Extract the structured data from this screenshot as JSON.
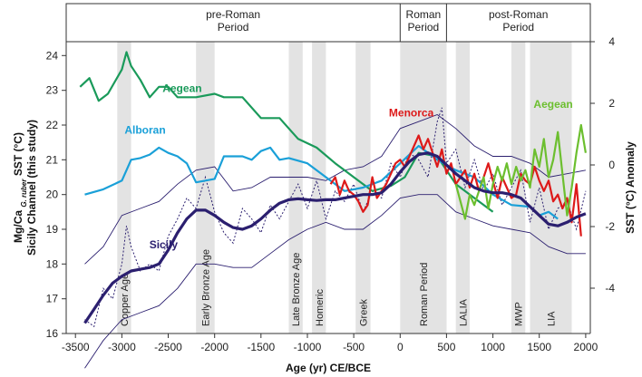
{
  "chart_data": {
    "type": "line",
    "xlabel": "Age (yr) CE/BCE",
    "ylabel_left": [
      "Mg/Ca G. ruber SST (°C)",
      "Sicily Channel (this study)"
    ],
    "ylabel_left_line1_pre": "Mg/Ca",
    "ylabel_left_line1_sub": "G. ruber",
    "ylabel_left_line1_post": "SST (°C)",
    "ylabel_left_line2": "Sicily Channel (this study)",
    "ylabel_right": "SST (°C) Anomaly",
    "xlim": [
      -3600,
      2050
    ],
    "ylim_left": [
      16,
      24.4
    ],
    "ylim_right": [
      -4,
      4
    ],
    "x_ticks": [
      -3500,
      -3000,
      -2500,
      -2000,
      -1500,
      -1000,
      -500,
      0,
      500,
      1000,
      1500,
      2000
    ],
    "x_tick_labels": [
      "-3500",
      "-3000",
      "-2500",
      "-2000",
      "-1500",
      "-1000",
      "-500",
      "0",
      "500",
      "1000",
      "1500",
      "2000"
    ],
    "y_left_ticks": [
      16,
      17,
      18,
      19,
      20,
      21,
      22,
      23,
      24
    ],
    "y_left_tick_labels": [
      "16",
      "17",
      "18",
      "19",
      "20",
      "21",
      "22",
      "23",
      "24"
    ],
    "y_right_ticks": [
      -4,
      -2,
      0,
      2,
      4
    ],
    "y_right_tick_labels": [
      "-4",
      "-2",
      "0",
      "2",
      "4"
    ],
    "periods": [
      {
        "label_lines": [
          "pre-Roman",
          "Period"
        ],
        "start": -3600,
        "end": 0
      },
      {
        "label_lines": [
          "Roman",
          "Period"
        ],
        "start": 0,
        "end": 500
      },
      {
        "label_lines": [
          "post-Roman",
          "Period"
        ],
        "start": 500,
        "end": 2050
      }
    ],
    "shaded_intervals": [
      {
        "label": "Copper Age",
        "start": -3050,
        "end": -2900
      },
      {
        "label": "Early Bronze Age",
        "start": -2200,
        "end": -2000
      },
      {
        "label": "Late Bronze Age",
        "start": -1200,
        "end": -1050
      },
      {
        "label": "Homeric",
        "start": -950,
        "end": -800
      },
      {
        "label": "Greek",
        "start": -480,
        "end": -320
      },
      {
        "label": "Roman Period",
        "start": 0,
        "end": 500
      },
      {
        "label": "LALIA",
        "start": 600,
        "end": 750
      },
      {
        "label": "MWP",
        "start": 1200,
        "end": 1350
      },
      {
        "label": "LIA",
        "start": 1400,
        "end": 1850
      }
    ],
    "series": [
      {
        "name": "Aegean",
        "color": "#1a9a5a",
        "axis": "left",
        "x": [
          -3450,
          -3350,
          -3250,
          -3150,
          -3000,
          -2950,
          -2900,
          -2800,
          -2700,
          -2600,
          -2500,
          -2400,
          -2200,
          -2000,
          -1900,
          -1700,
          -1500,
          -1300,
          -1100,
          -900,
          -700,
          -500,
          -300,
          -100,
          50,
          200,
          400,
          600,
          800,
          1000
        ],
        "values": [
          23.1,
          23.35,
          22.7,
          22.9,
          23.6,
          24.1,
          23.7,
          23.3,
          22.8,
          23.1,
          23.1,
          22.8,
          22.8,
          22.9,
          22.8,
          22.8,
          22.2,
          22.2,
          21.6,
          21.35,
          20.9,
          20.5,
          20.1,
          20.25,
          20.5,
          21.2,
          21.1,
          20.3,
          19.9,
          19.5
        ]
      },
      {
        "name": "Alboran",
        "color": "#1aa0d8",
        "axis": "left",
        "x": [
          -3400,
          -3200,
          -3000,
          -2900,
          -2800,
          -2700,
          -2600,
          -2500,
          -2400,
          -2300,
          -2200,
          -2000,
          -1900,
          -1800,
          -1700,
          -1600,
          -1500,
          -1400,
          -1300,
          -1200,
          -1000,
          -800,
          -600,
          -400,
          -200,
          0,
          200,
          400,
          600,
          800,
          1000,
          1200,
          1400,
          1500,
          1600,
          1700
        ],
        "values": [
          20.0,
          20.15,
          20.4,
          21.0,
          21.05,
          21.15,
          21.35,
          21.2,
          21.1,
          20.9,
          20.35,
          20.45,
          21.1,
          21.1,
          21.1,
          21.0,
          21.25,
          21.35,
          21.0,
          21.05,
          20.9,
          20.5,
          20.1,
          20.2,
          20.4,
          20.9,
          21.4,
          21.0,
          20.7,
          20.5,
          20.0,
          19.7,
          19.65,
          19.4,
          19.5,
          19.3
        ]
      },
      {
        "name": "Menorca",
        "color": "#dd1a1a",
        "axis": "left",
        "x": [
          -750,
          -700,
          -650,
          -600,
          -550,
          -500,
          -450,
          -400,
          -350,
          -300,
          -250,
          -200,
          -150,
          -100,
          -50,
          0,
          50,
          100,
          150,
          200,
          250,
          300,
          350,
          400,
          450,
          500,
          550,
          600,
          650,
          700,
          750,
          800,
          850,
          900,
          950,
          1000,
          1050,
          1100,
          1150,
          1200,
          1250,
          1300,
          1350,
          1400,
          1450,
          1500,
          1550,
          1600,
          1650,
          1700,
          1750,
          1800,
          1850,
          1900,
          1950
        ],
        "values": [
          20.3,
          20.5,
          20.0,
          20.4,
          20.1,
          20.0,
          19.8,
          19.5,
          19.7,
          20.5,
          19.9,
          20.1,
          20.3,
          20.6,
          20.9,
          21.0,
          20.8,
          21.1,
          21.4,
          21.7,
          21.3,
          21.6,
          21.2,
          20.8,
          21.3,
          20.6,
          20.9,
          20.3,
          20.5,
          20.7,
          20.2,
          20.6,
          20.1,
          20.5,
          20.9,
          20.4,
          19.9,
          20.5,
          20.2,
          19.9,
          20.0,
          20.6,
          20.4,
          20.3,
          20.8,
          20.4,
          20.1,
          20.4,
          19.8,
          20.0,
          19.6,
          19.9,
          19.2,
          20.3,
          18.8
        ]
      },
      {
        "name": "Aegean",
        "color": "#6cbf2f",
        "axis": "left",
        "x": [
          600,
          650,
          700,
          750,
          800,
          850,
          900,
          950,
          1000,
          1050,
          1100,
          1150,
          1200,
          1250,
          1300,
          1350,
          1400,
          1450,
          1500,
          1550,
          1600,
          1650,
          1700,
          1750,
          1800,
          1850,
          1900,
          1950,
          2000
        ],
        "values": [
          20.3,
          19.8,
          19.3,
          20.0,
          19.7,
          20.1,
          20.5,
          19.6,
          20.3,
          20.8,
          20.4,
          20.9,
          20.3,
          20.8,
          20.4,
          20.7,
          20.2,
          21.3,
          20.8,
          21.6,
          20.5,
          21.0,
          21.8,
          20.6,
          19.4,
          20.2,
          21.2,
          22.0,
          21.2
        ]
      },
      {
        "name": "Sicily",
        "color": "#2b1f6f",
        "axis": "left",
        "x": [
          -3400,
          -3300,
          -3200,
          -3100,
          -3000,
          -2900,
          -2800,
          -2700,
          -2600,
          -2500,
          -2400,
          -2300,
          -2200,
          -2100,
          -2000,
          -1900,
          -1800,
          -1700,
          -1600,
          -1500,
          -1400,
          -1300,
          -1200,
          -1100,
          -1000,
          -900,
          -800,
          -700,
          -600,
          -500,
          -400,
          -300,
          -200,
          -100,
          0,
          100,
          200,
          300,
          400,
          500,
          600,
          700,
          800,
          900,
          1000,
          1100,
          1200,
          1300,
          1400,
          1500,
          1600,
          1700,
          1800,
          1900,
          2000
        ],
        "values": [
          16.3,
          16.7,
          17.1,
          17.45,
          17.65,
          17.8,
          17.85,
          17.9,
          18.0,
          18.4,
          18.9,
          19.3,
          19.55,
          19.55,
          19.4,
          19.2,
          19.05,
          19.0,
          19.1,
          19.3,
          19.55,
          19.75,
          19.85,
          19.88,
          19.85,
          19.83,
          19.85,
          19.85,
          19.9,
          19.95,
          20.0,
          20.0,
          20.05,
          20.3,
          20.65,
          20.95,
          21.15,
          21.2,
          21.1,
          20.85,
          20.6,
          20.4,
          20.2,
          20.1,
          20.05,
          20.05,
          20.0,
          19.9,
          19.65,
          19.4,
          19.15,
          19.1,
          19.2,
          19.35,
          19.45
        ]
      }
    ],
    "envelope_color": "#2b1f6f",
    "envelope_upper": {
      "x": [
        -3400,
        -3200,
        -3000,
        -2800,
        -2600,
        -2400,
        -2200,
        -2000,
        -1800,
        -1600,
        -1400,
        -1200,
        -1000,
        -800,
        -600,
        -400,
        -200,
        0,
        200,
        400,
        600,
        800,
        1000,
        1200,
        1400,
        1600,
        1800,
        2000
      ],
      "values": [
        18.0,
        18.5,
        19.4,
        19.6,
        19.8,
        20.3,
        20.7,
        20.8,
        20.1,
        20.2,
        20.5,
        20.5,
        20.5,
        20.4,
        20.7,
        20.8,
        21.1,
        21.9,
        22.1,
        22.3,
        21.9,
        21.4,
        21.1,
        21.1,
        20.9,
        20.5,
        20.6,
        20.7
      ]
    },
    "envelope_lower": {
      "x": [
        -3400,
        -3200,
        -3000,
        -2800,
        -2600,
        -2400,
        -2200,
        -2000,
        -1800,
        -1600,
        -1400,
        -1200,
        -1000,
        -800,
        -600,
        -400,
        -200,
        0,
        200,
        400,
        600,
        800,
        1000,
        1200,
        1400,
        1600,
        1800,
        2000
      ],
      "values": [
        15.0,
        15.8,
        16.4,
        16.6,
        16.8,
        17.3,
        18.0,
        18.0,
        17.9,
        17.9,
        18.3,
        18.7,
        19.0,
        19.2,
        19.0,
        19.0,
        19.4,
        19.9,
        20.0,
        20.0,
        19.5,
        19.3,
        19.1,
        19.0,
        18.9,
        18.5,
        18.3,
        18.3
      ]
    },
    "dotted_series": {
      "name": "",
      "color": "#2b1f6f",
      "x": [
        -3400,
        -3300,
        -3200,
        -3100,
        -3000,
        -2950,
        -2900,
        -2800,
        -2700,
        -2600,
        -2500,
        -2400,
        -2300,
        -2200,
        -2100,
        -2000,
        -1900,
        -1800,
        -1700,
        -1600,
        -1500,
        -1400,
        -1300,
        -1200,
        -1100,
        -1000,
        -900,
        -800,
        -700,
        -600,
        -500,
        -400,
        -300,
        -200,
        -100,
        0,
        100,
        200,
        300,
        350,
        400,
        450,
        500,
        600,
        700,
        800,
        900,
        1000,
        1100,
        1200,
        1300,
        1400,
        1500,
        1600,
        1700,
        1800,
        1900,
        2000
      ],
      "values": [
        16.4,
        16.2,
        17.3,
        17.0,
        18.0,
        19.1,
        18.5,
        17.8,
        18.0,
        17.8,
        18.8,
        19.3,
        19.9,
        19.6,
        20.5,
        19.5,
        18.9,
        18.6,
        19.6,
        19.3,
        18.9,
        19.7,
        19.3,
        19.8,
        20.3,
        19.6,
        20.4,
        19.3,
        20.1,
        19.8,
        20.3,
        19.5,
        20.1,
        19.9,
        20.9,
        20.5,
        21.2,
        21.0,
        20.5,
        21.3,
        22.1,
        22.5,
        20.9,
        21.3,
        20.2,
        21.0,
        20.1,
        20.6,
        19.7,
        20.2,
        20.7,
        19.2,
        20.2,
        19.0,
        19.6,
        19.8,
        19.0,
        20.1
      ]
    },
    "series_labels": [
      {
        "text": "Aegean",
        "color": "#1a9a5a",
        "x": -2350,
        "y": 22.95
      },
      {
        "text": "Alboran",
        "color": "#1aa0d8",
        "x": -2750,
        "y": 21.75
      },
      {
        "text": "Menorca",
        "color": "#dd1a1a",
        "x": 120,
        "y": 22.25
      },
      {
        "text": "Aegean",
        "color": "#6cbf2f",
        "x": 1650,
        "y": 22.5
      },
      {
        "text": "Sicily",
        "color": "#2b1f6f",
        "x": -2550,
        "y": 18.45
      }
    ]
  }
}
